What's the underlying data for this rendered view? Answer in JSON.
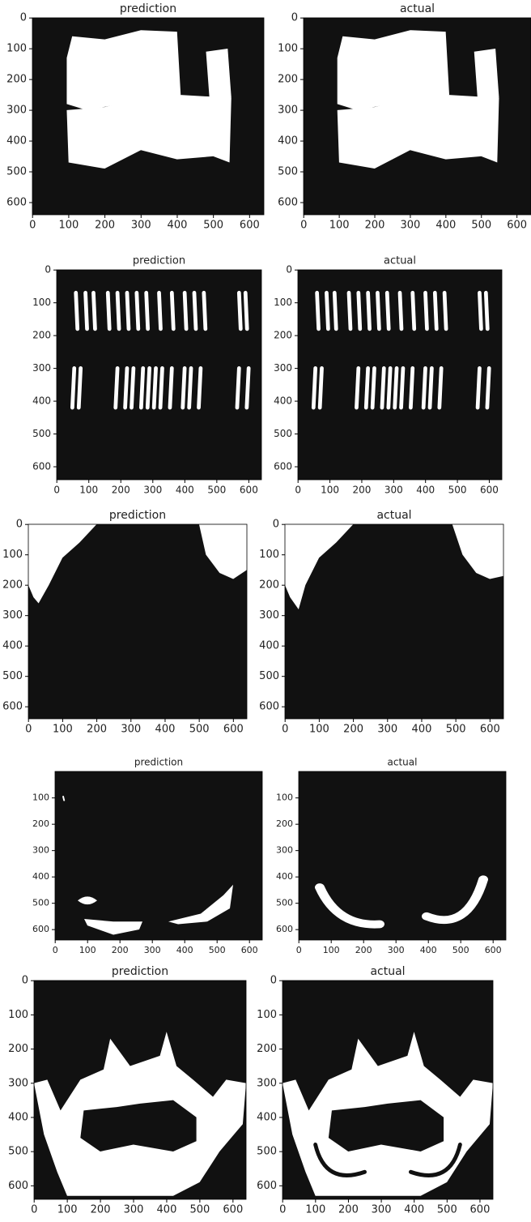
{
  "chart_data": [
    {
      "type": "image",
      "title": "prediction",
      "xlim": [
        -0.5,
        639.5
      ],
      "ylim": [
        639.5,
        -0.5
      ],
      "xticks": [
        0,
        100,
        200,
        300,
        400,
        500,
        600
      ],
      "yticks": [
        0,
        100,
        200,
        300,
        400,
        500,
        600
      ]
    },
    {
      "type": "image",
      "title": "actual",
      "xlim": [
        -0.5,
        639.5
      ],
      "ylim": [
        639.5,
        -0.5
      ],
      "xticks": [
        0,
        100,
        200,
        300,
        400,
        500,
        600
      ],
      "yticks": [
        0,
        100,
        200,
        300,
        400,
        500,
        600
      ]
    },
    {
      "type": "image",
      "title": "prediction",
      "xlim": [
        -0.5,
        639.5
      ],
      "ylim": [
        639.5,
        -0.5
      ],
      "xticks": [
        0,
        100,
        200,
        300,
        400,
        500,
        600
      ],
      "yticks": [
        0,
        100,
        200,
        300,
        400,
        500,
        600
      ]
    },
    {
      "type": "image",
      "title": "actual",
      "xlim": [
        -0.5,
        639.5
      ],
      "ylim": [
        639.5,
        -0.5
      ],
      "xticks": [
        0,
        100,
        200,
        300,
        400,
        500,
        600
      ],
      "yticks": [
        0,
        100,
        200,
        300,
        400,
        500,
        600
      ]
    },
    {
      "type": "image",
      "title": "prediction",
      "xlim": [
        -0.5,
        639.5
      ],
      "ylim": [
        639.5,
        -0.5
      ],
      "xticks": [
        0,
        100,
        200,
        300,
        400,
        500,
        600
      ],
      "yticks": [
        0,
        100,
        200,
        300,
        400,
        500,
        600
      ]
    },
    {
      "type": "image",
      "title": "actual",
      "xlim": [
        -0.5,
        639.5
      ],
      "ylim": [
        639.5,
        -0.5
      ],
      "xticks": [
        0,
        100,
        200,
        300,
        400,
        500,
        600
      ],
      "yticks": [
        0,
        100,
        200,
        300,
        400,
        500,
        600
      ]
    },
    {
      "type": "image",
      "title": "prediction",
      "xlim": [
        -0.5,
        639.5
      ],
      "ylim": [
        639.5,
        -0.5
      ],
      "xticks": [
        0,
        100,
        200,
        300,
        400,
        500,
        600
      ],
      "yticks": [
        100,
        200,
        300,
        400,
        500,
        600
      ]
    },
    {
      "type": "image",
      "title": "actual",
      "xlim": [
        -0.5,
        639.5
      ],
      "ylim": [
        639.5,
        -0.5
      ],
      "xticks": [
        0,
        100,
        200,
        300,
        400,
        500,
        600
      ],
      "yticks": [
        100,
        200,
        300,
        400,
        500,
        600
      ]
    },
    {
      "type": "image",
      "title": "prediction",
      "xlim": [
        -0.5,
        639.5
      ],
      "ylim": [
        639.5,
        -0.5
      ],
      "xticks": [
        0,
        100,
        200,
        300,
        400,
        500,
        600
      ],
      "yticks": [
        0,
        100,
        200,
        300,
        400,
        500,
        600
      ]
    },
    {
      "type": "image",
      "title": "actual",
      "xlim": [
        -0.5,
        639.5
      ],
      "ylim": [
        639.5,
        -0.5
      ],
      "xticks": [
        0,
        100,
        200,
        300,
        400,
        500,
        600
      ],
      "yticks": [
        0,
        100,
        200,
        300,
        400,
        500,
        600
      ]
    }
  ]
}
